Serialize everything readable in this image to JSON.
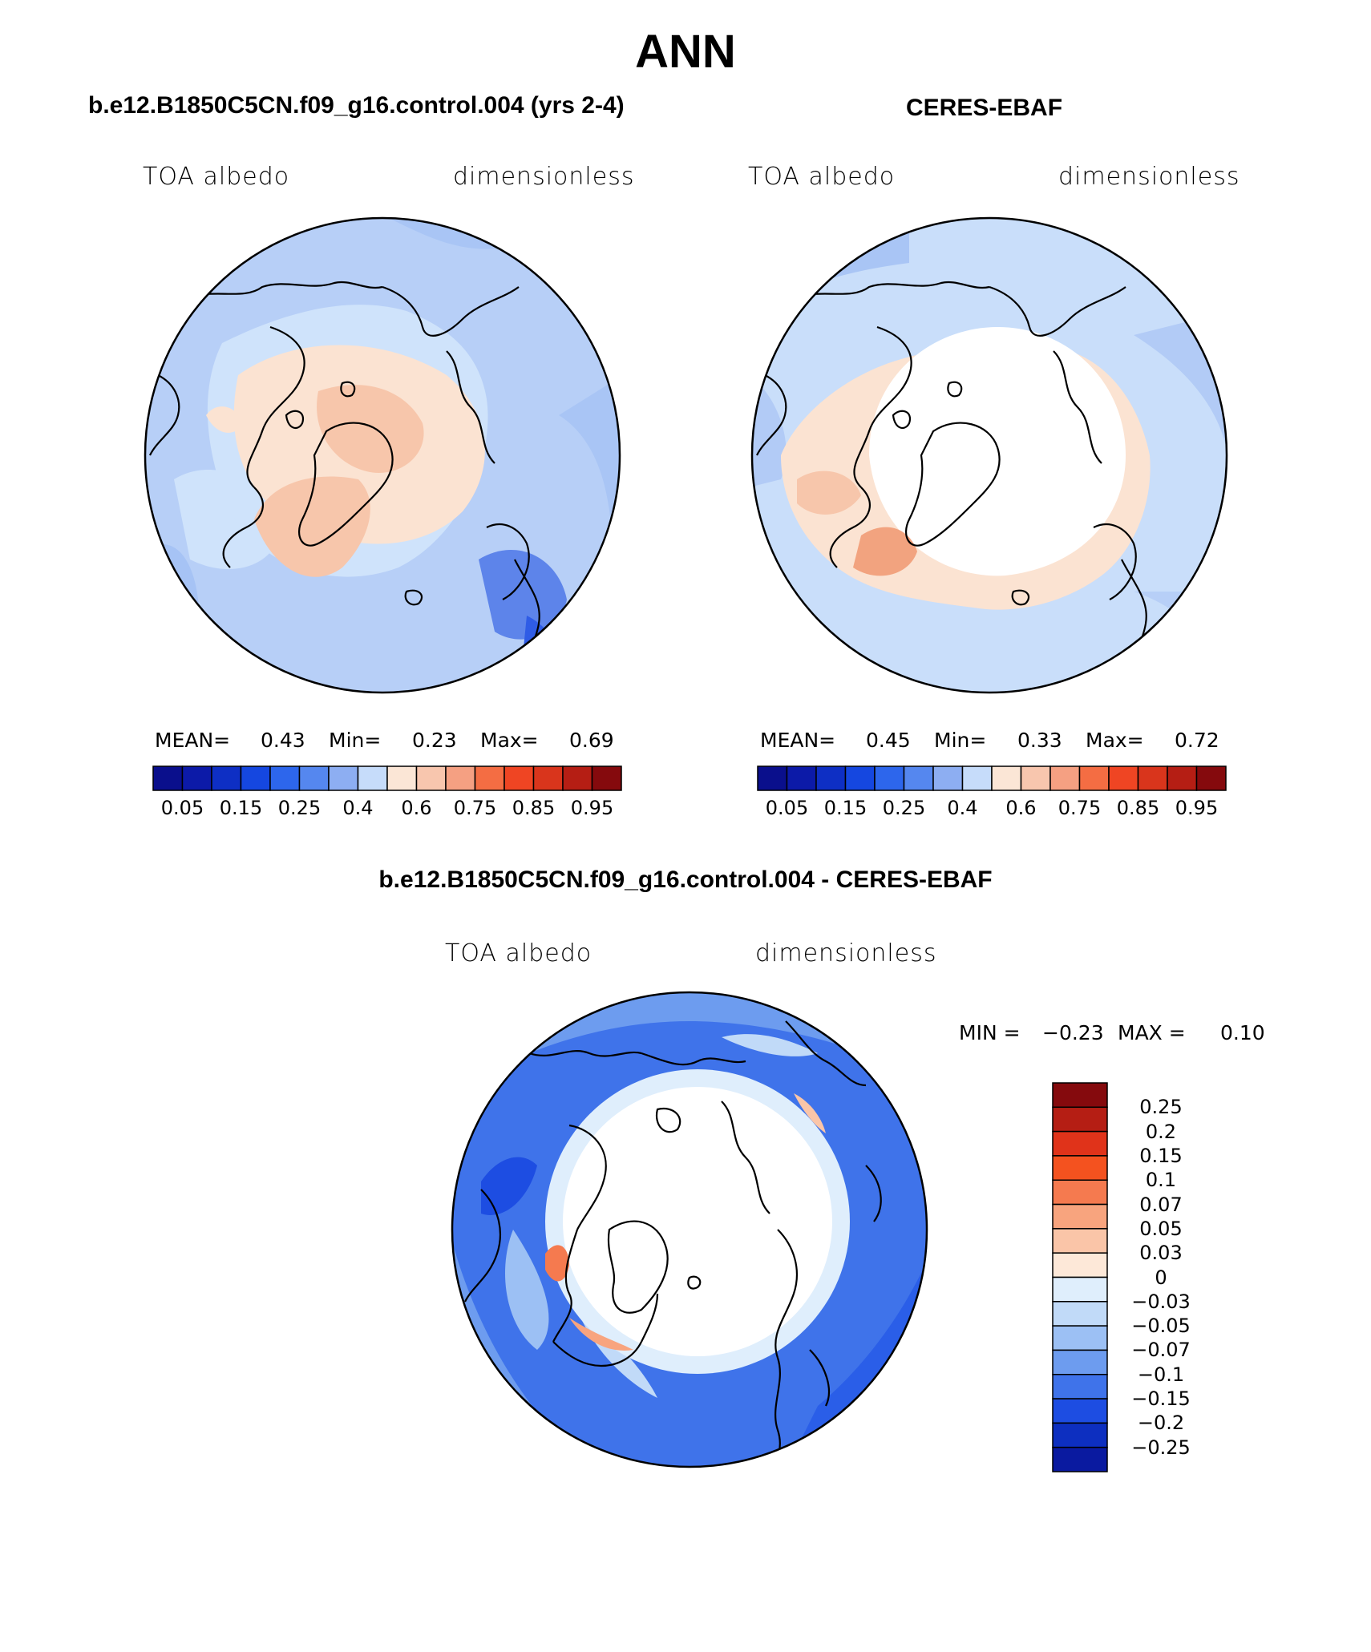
{
  "title": "ANN",
  "panels": [
    {
      "name": "model",
      "title": "b.e12.B1850C5CN.f09_g16.control.004 (yrs 2-4)",
      "left_label": "TOA albedo",
      "right_label": "dimensionless",
      "mean_label": "MEAN=",
      "mean_value": "0.43",
      "min_label": "Min=",
      "min_value": "0.23",
      "max_label": "Max=",
      "max_value": "0.69"
    },
    {
      "name": "obs",
      "title": "CERES-EBAF",
      "left_label": "TOA albedo",
      "right_label": "dimensionless",
      "mean_label": "MEAN=",
      "mean_value": "0.45",
      "min_label": "Min=",
      "min_value": "0.33",
      "max_label": "Max=",
      "max_value": "0.72"
    }
  ],
  "abs_colorbar": {
    "ticks": [
      "0.05",
      "0.15",
      "0.25",
      "0.4",
      "0.6",
      "0.75",
      "0.85",
      "0.95"
    ],
    "colors": [
      "#0a0f8c",
      "#0c1aa8",
      "#0e2fc4",
      "#1547e0",
      "#2d66ec",
      "#5587ef",
      "#8daef2",
      "#c6dcfa",
      "#fbe6d6",
      "#f8c6ae",
      "#f5a082",
      "#f46d43",
      "#ef4523",
      "#d9351c",
      "#b51e14",
      "#850a0d"
    ]
  },
  "difference": {
    "title": "b.e12.B1850C5CN.f09_g16.control.004 - CERES-EBAF",
    "left_label": "TOA albedo",
    "right_label": "dimensionless",
    "min_label": "MIN =",
    "min_value": "−0.23",
    "max_label": "MAX =",
    "max_value": "0.10",
    "colorbar_ticks": [
      "0.25",
      "0.2",
      "0.15",
      "0.1",
      "0.07",
      "0.05",
      "0.03",
      "0",
      "−0.03",
      "−0.05",
      "−0.07",
      "−0.1",
      "−0.15",
      "−0.2",
      "−0.25"
    ],
    "colorbar_colors": [
      "#850a0d",
      "#b51e14",
      "#e0331a",
      "#f4521f",
      "#f57a4f",
      "#f8a47e",
      "#fac5a8",
      "#fde8d8",
      "#dfeefc",
      "#c1daf8",
      "#9cc0f4",
      "#6d9cef",
      "#3f73ea",
      "#1d4de2",
      "#0d2fc0",
      "#0a1aa0"
    ]
  },
  "palette": {
    "blue_deep": "#2f5ce6",
    "blue_mid": "#8fb4f2",
    "blue_light": "#cfe3fb",
    "peach_light": "#fbe3d2",
    "peach_mid": "#f7c6ab",
    "white": "#ffffff"
  }
}
